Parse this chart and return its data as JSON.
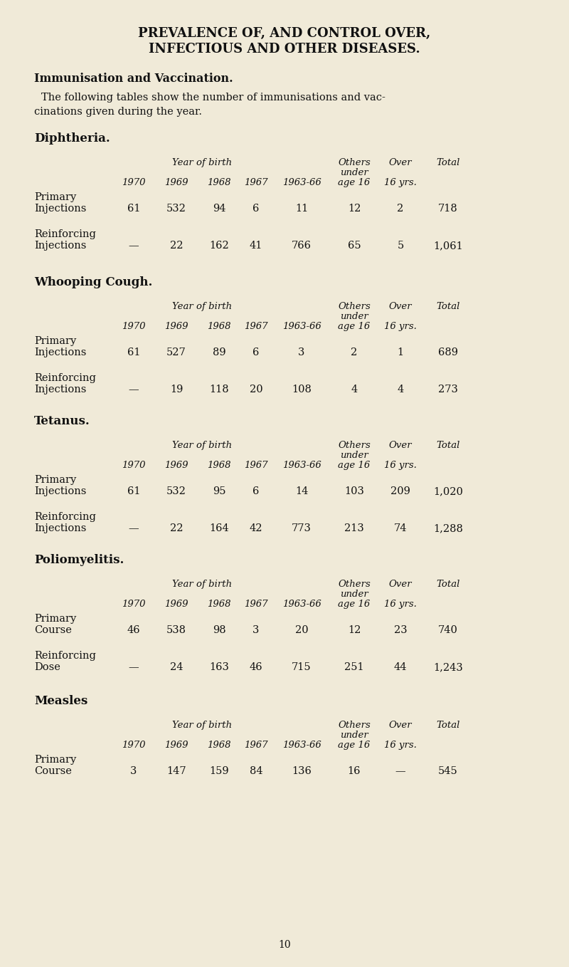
{
  "bg_color": "#f0eaD8",
  "title_line1": "PREVALENCE OF, AND CONTROL OVER,",
  "title_line2": "INFECTIOUS AND OTHER DISEASES.",
  "section_heading": "Immunisation and Vaccination.",
  "intro_text_line1": "The following tables show the number of immunisations and vac-",
  "intro_text_line2": "cinations given during the year.",
  "sections": [
    {
      "name": "Diphtheria.",
      "rows": [
        {
          "label_line1": "Primary",
          "label_line2": "Injections",
          "col1": "61",
          "col2": "532",
          "col3": "94",
          "col4": "6",
          "col5": "11",
          "col6": "12",
          "col7": "2",
          "col8": "718"
        },
        {
          "label_line1": "Reinforcing",
          "label_line2": "Injections",
          "col1": "—",
          "col2": "22",
          "col3": "162",
          "col4": "41",
          "col5": "766",
          "col6": "65",
          "col7": "5",
          "col8": "1,061"
        }
      ]
    },
    {
      "name": "Whooping Cough.",
      "rows": [
        {
          "label_line1": "Primary",
          "label_line2": "Injections",
          "col1": "61",
          "col2": "527",
          "col3": "89",
          "col4": "6",
          "col5": "3",
          "col6": "2",
          "col7": "1",
          "col8": "689"
        },
        {
          "label_line1": "Reinforcing",
          "label_line2": "Injections",
          "col1": "—",
          "col2": "19",
          "col3": "118",
          "col4": "20",
          "col5": "108",
          "col6": "4",
          "col7": "4",
          "col8": "273"
        }
      ]
    },
    {
      "name": "Tetanus.",
      "rows": [
        {
          "label_line1": "Primary",
          "label_line2": "Injections",
          "col1": "61",
          "col2": "532",
          "col3": "95",
          "col4": "6",
          "col5": "14",
          "col6": "103",
          "col7": "209",
          "col8": "1,020"
        },
        {
          "label_line1": "Reinforcing",
          "label_line2": "Injections",
          "col1": "—",
          "col2": "22",
          "col3": "164",
          "col4": "42",
          "col5": "773",
          "col6": "213",
          "col7": "74",
          "col8": "1,288"
        }
      ]
    },
    {
      "name": "Poliomyelitis.",
      "rows": [
        {
          "label_line1": "Primary",
          "label_line2": "Course",
          "col1": "46",
          "col2": "538",
          "col3": "98",
          "col4": "3",
          "col5": "20",
          "col6": "12",
          "col7": "23",
          "col8": "740"
        },
        {
          "label_line1": "Reinforcing",
          "label_line2": "Dose",
          "col1": "—",
          "col2": "24",
          "col3": "163",
          "col4": "46",
          "col5": "715",
          "col6": "251",
          "col7": "44",
          "col8": "1,243"
        }
      ]
    },
    {
      "name": "Measles",
      "rows": [
        {
          "label_line1": "Primary",
          "label_line2": "Course",
          "col1": "3",
          "col2": "147",
          "col3": "159",
          "col4": "84",
          "col5": "136",
          "col6": "16",
          "col7": "—",
          "col8": "545"
        }
      ]
    }
  ],
  "page_number": "10"
}
